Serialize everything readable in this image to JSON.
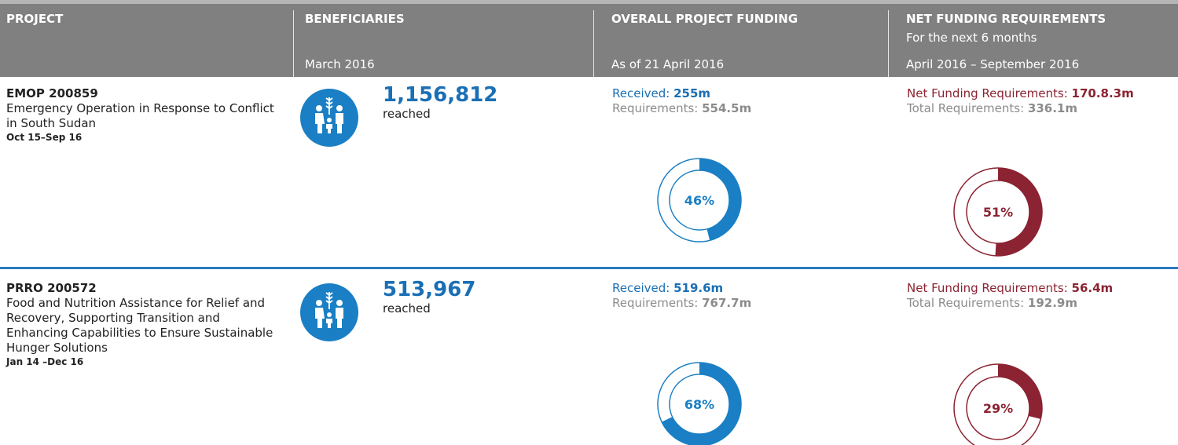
{
  "header": {
    "columns": [
      {
        "title": "PROJECT"
      },
      {
        "title": "BENEFICIARIES",
        "sub": "March 2016"
      },
      {
        "title": "OVERALL PROJECT FUNDING",
        "sub": "As of 21 April 2016"
      },
      {
        "title": "NET FUNDING REQUIREMENTS",
        "note": "For the next 6 months",
        "sub": "April 2016 – September 2016"
      }
    ]
  },
  "rows": [
    {
      "code": "EMOP 200859",
      "name": "Emergency Operation in Response to Conflict in South Sudan",
      "dates": "Oct 15–Sep 16",
      "beneficiaries": "1,156,812",
      "reached": "reached",
      "funding": {
        "received_label": "Received:",
        "received": "255m",
        "requirements_label": "Requirements:",
        "requirements": "554.5m",
        "share": {
          "value": 46,
          "label": "46%"
        }
      },
      "net": {
        "label": "Net Funding Requirements:",
        "value": "170.8.3m",
        "total_label": "Total Requirements:",
        "total": "336.1m",
        "share": {
          "value": 51,
          "label": "51%"
        }
      }
    },
    {
      "code": "PRRO 200572",
      "name": "Food and Nutrition Assistance for Relief and Recovery, Supporting Transition and Enhancing Capabilities to Ensure Sustainable Hunger Solutions",
      "dates": "Jan 14 –Dec 16",
      "beneficiaries": "513,967",
      "reached": "reached",
      "funding": {
        "received_label": "Received:",
        "received": "519.6m",
        "requirements_label": "Requirements:",
        "requirements": "767.7m",
        "share": {
          "value": 68,
          "label": "68%"
        }
      },
      "net": {
        "label": "Net Funding Requirements:",
        "value": "56.4m",
        "total_label": "Total Requirements:",
        "total": "192.9m",
        "share": {
          "value": 29,
          "label": "29%"
        }
      }
    }
  ]
}
